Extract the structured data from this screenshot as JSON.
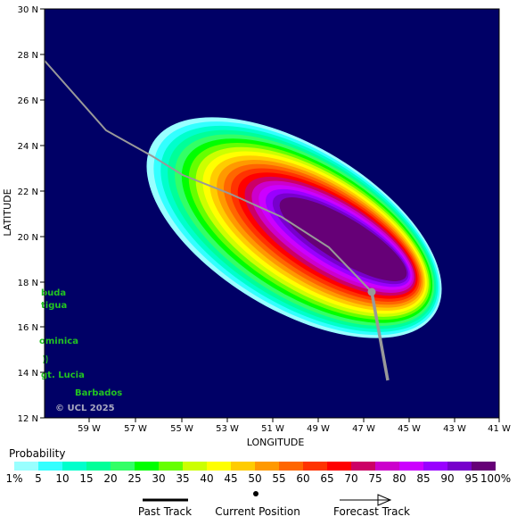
{
  "axes": {
    "xlabel": "LONGITUDE",
    "ylabel": "LATITUDE",
    "lon_ticks": [
      "59 W",
      "57 W",
      "55 W",
      "53 W",
      "51 W",
      "49 W",
      "47 W",
      "45 W",
      "43 W",
      "41 W"
    ],
    "lat_ticks": [
      "30 N",
      "28 N",
      "26 N",
      "24 N",
      "22 N",
      "20 N",
      "18 N",
      "16 N",
      "14 N",
      "12 N"
    ]
  },
  "islands": [
    {
      "name": "buda"
    },
    {
      "name": "tigua"
    },
    {
      "name": "ominica"
    },
    {
      "name": "gt. Lucia"
    },
    {
      "name": "Barbados"
    }
  ],
  "copyright": "© UCL 2025",
  "track": {
    "past_color": "#999999",
    "current_position_color": "#999999"
  },
  "legend": {
    "title": "Probability",
    "labels": [
      "1%",
      "5",
      "10",
      "15",
      "20",
      "25",
      "30",
      "35",
      "40",
      "45",
      "50",
      "55",
      "60",
      "65",
      "70",
      "75",
      "80",
      "85",
      "90",
      "95",
      "100%"
    ],
    "colors": [
      "#99ffff",
      "#33ffff",
      "#00ffcc",
      "#00ff99",
      "#33ff66",
      "#00ff00",
      "#66ff00",
      "#ccff00",
      "#ffff00",
      "#ffcc00",
      "#ff9900",
      "#ff6600",
      "#ff3300",
      "#ff0000",
      "#cc0066",
      "#cc00cc",
      "#cc00ff",
      "#9900ff",
      "#7700cc",
      "#660077"
    ],
    "key": {
      "past_track": "Past Track",
      "current_position": "Current Position",
      "forecast_track": "Forecast Track"
    }
  },
  "colors": {
    "ocean": "#000066"
  }
}
